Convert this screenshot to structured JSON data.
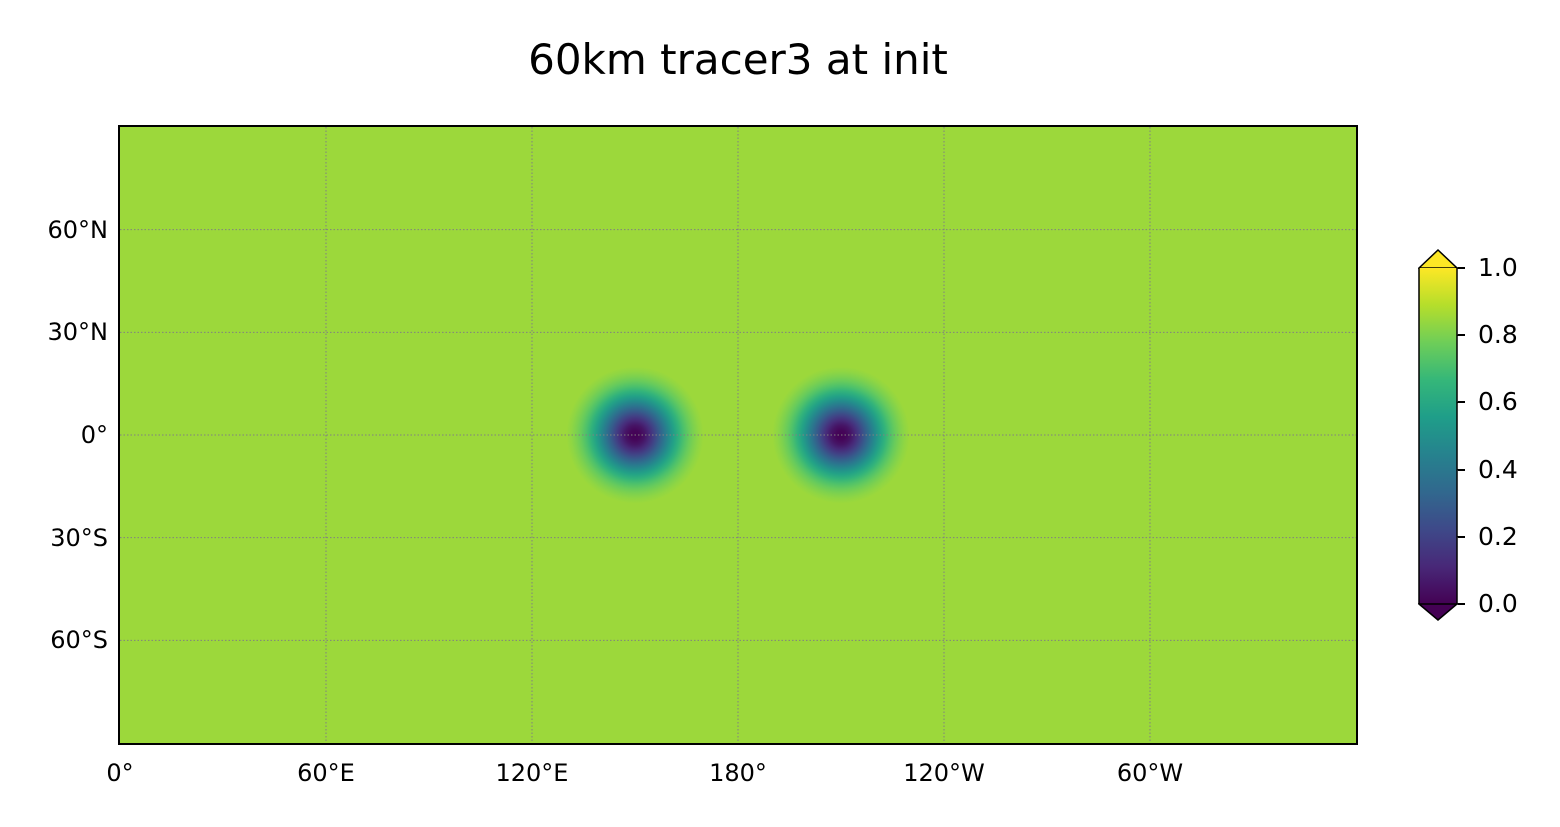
{
  "figure": {
    "title": "60km tracer3 at init"
  },
  "map": {
    "projection": "equirectangular",
    "extent": {
      "lon": [
        0,
        360
      ],
      "lat": [
        -90,
        90
      ]
    },
    "background_value": 0.85,
    "gridlines": {
      "style": "dotted",
      "color": "#808080",
      "lon_deg": [
        60,
        120,
        180,
        240,
        300
      ],
      "lat_deg": [
        -60,
        -30,
        0,
        30,
        60
      ]
    },
    "x_ticks": [
      {
        "lon": 0,
        "label": "0°"
      },
      {
        "lon": 60,
        "label": "60°E"
      },
      {
        "lon": 120,
        "label": "120°E"
      },
      {
        "lon": 180,
        "label": "180°"
      },
      {
        "lon": 240,
        "label": "120°W"
      },
      {
        "lon": 300,
        "label": "60°W"
      }
    ],
    "y_ticks": [
      {
        "lat": 60,
        "label": "60°N"
      },
      {
        "lat": 30,
        "label": "30°N"
      },
      {
        "lat": 0,
        "label": "0°"
      },
      {
        "lat": -30,
        "label": "30°S"
      },
      {
        "lat": -60,
        "label": "60°S"
      }
    ],
    "features": [
      {
        "name": "tracer-minimum-west",
        "center_lon": 150,
        "center_lat": 0,
        "min_value": 0.0,
        "edge_value": 0.85,
        "radius_deg": 20
      },
      {
        "name": "tracer-minimum-east",
        "center_lon": 210,
        "center_lat": 0,
        "min_value": 0.0,
        "edge_value": 0.85,
        "radius_deg": 20
      }
    ]
  },
  "colorbar": {
    "colormap": "viridis",
    "range": [
      0.0,
      1.0
    ],
    "extend": "both",
    "ticks": [
      {
        "value": 0.0,
        "label": "0.0"
      },
      {
        "value": 0.2,
        "label": "0.2"
      },
      {
        "value": 0.4,
        "label": "0.4"
      },
      {
        "value": 0.6,
        "label": "0.6"
      },
      {
        "value": 0.8,
        "label": "0.8"
      },
      {
        "value": 1.0,
        "label": "1.0"
      }
    ]
  }
}
